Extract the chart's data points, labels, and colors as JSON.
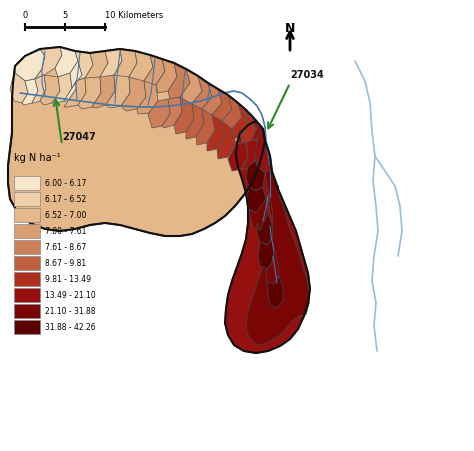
{
  "legend_title": "kg N ha⁻¹",
  "legend_labels": [
    "6.00 - 6.17",
    "6.17 - 6.52",
    "6.52 - 7.00",
    "7.00 - 7.61",
    "7.61 - 8.67",
    "8.67 - 9.81",
    "9.81 - 13.49",
    "13.49 - 21.10",
    "21.10 - 31.88",
    "31.88 - 42.26"
  ],
  "legend_colors": [
    "#f5e6cc",
    "#eecfaa",
    "#e5b88a",
    "#d99e72",
    "#cc7f58",
    "#bf6040",
    "#b03020",
    "#961010",
    "#7a0505",
    "#5c0000"
  ],
  "background_color": "#ffffff"
}
